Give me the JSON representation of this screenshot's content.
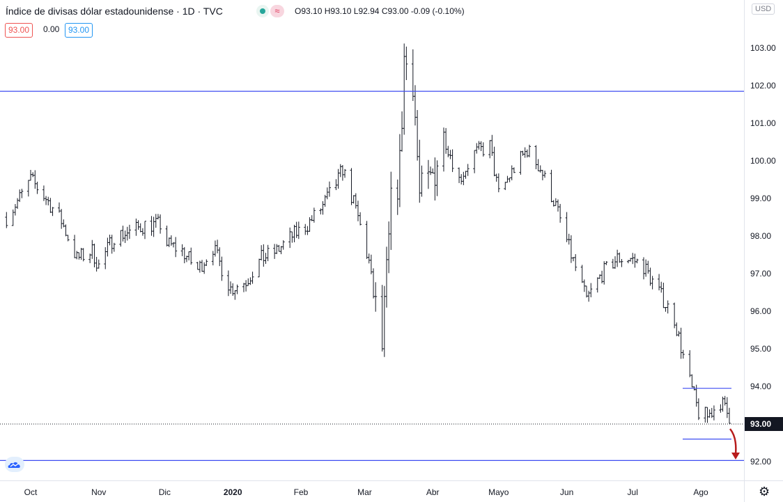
{
  "legend": {
    "title": "Índice de divisas dólar estadounidense · 1D · TVC",
    "open_label": "O",
    "open": "93.10",
    "high_label": "H",
    "high": "93.10",
    "low_label": "L",
    "low": "92.94",
    "close_label": "C",
    "close": "93.00",
    "change": "-0.09 (-0.10%)",
    "box_last": "93.00",
    "box_zero": "0.00",
    "box_blue": "93.00",
    "status_icon": "dot-icon",
    "wave_icon": "≈"
  },
  "price_axis": {
    "currency": "USD",
    "ticks": [
      "103.00",
      "102.00",
      "101.00",
      "100.00",
      "99.00",
      "98.00",
      "97.00",
      "96.00",
      "95.00",
      "94.00",
      "92.00"
    ],
    "last_price": "93.00"
  },
  "time_axis": {
    "labels": [
      "Oct",
      "Nov",
      "Dic",
      "2020",
      "Feb",
      "Mar",
      "Abr",
      "Mayo",
      "Jun",
      "Jul",
      "Ago"
    ]
  },
  "colors": {
    "bars": "#131722",
    "support_line": "#3d4cf2",
    "arrow": "#b71c1c",
    "last_label_bg": "#131722"
  },
  "chart_data": {
    "type": "ohlc",
    "title": "Índice de divisas dólar estadounidense",
    "interval": "1D",
    "source": "TVC",
    "currency": "USD",
    "ylim": [
      91.5,
      104.0
    ],
    "x_labels": [
      "Oct",
      "Nov",
      "Dic",
      "2020",
      "Feb",
      "Mar",
      "Abr",
      "Mayo",
      "Jun",
      "Jul",
      "Ago"
    ],
    "close_path": [
      [
        "2019-09-20",
        98.5
      ],
      [
        "2019-09-27",
        99.1
      ],
      [
        "2019-10-01",
        99.5
      ],
      [
        "2019-10-08",
        99.0
      ],
      [
        "2019-10-15",
        98.4
      ],
      [
        "2019-10-22",
        97.4
      ],
      [
        "2019-10-29",
        97.6
      ],
      [
        "2019-11-01",
        97.2
      ],
      [
        "2019-11-08",
        98.0
      ],
      [
        "2019-11-15",
        98.1
      ],
      [
        "2019-11-22",
        98.3
      ],
      [
        "2019-11-29",
        98.3
      ],
      [
        "2019-12-02",
        97.8
      ],
      [
        "2019-12-09",
        97.6
      ],
      [
        "2019-12-16",
        97.1
      ],
      [
        "2019-12-23",
        97.7
      ],
      [
        "2019-12-31",
        96.6
      ],
      [
        "2020-01-07",
        96.8
      ],
      [
        "2020-01-14",
        97.4
      ],
      [
        "2020-01-21",
        97.6
      ],
      [
        "2020-01-28",
        98.0
      ],
      [
        "2020-02-04",
        98.3
      ],
      [
        "2020-02-11",
        98.8
      ],
      [
        "2020-02-18",
        99.5
      ],
      [
        "2020-02-20",
        99.8
      ],
      [
        "2020-02-27",
        98.5
      ],
      [
        "2020-03-03",
        97.3
      ],
      [
        "2020-03-06",
        96.0
      ],
      [
        "2020-03-09",
        95.0
      ],
      [
        "2020-03-13",
        98.7
      ],
      [
        "2020-03-17",
        99.8
      ],
      [
        "2020-03-19",
        102.7
      ],
      [
        "2020-03-23",
        102.3
      ],
      [
        "2020-03-26",
        99.0
      ],
      [
        "2020-03-31",
        99.4
      ],
      [
        "2020-04-06",
        100.7
      ],
      [
        "2020-04-13",
        99.5
      ],
      [
        "2020-04-20",
        100.2
      ],
      [
        "2020-04-27",
        100.4
      ],
      [
        "2020-05-01",
        99.1
      ],
      [
        "2020-05-08",
        99.8
      ],
      [
        "2020-05-14",
        100.3
      ],
      [
        "2020-05-20",
        99.8
      ],
      [
        "2020-05-27",
        98.8
      ],
      [
        "2020-06-03",
        97.5
      ],
      [
        "2020-06-10",
        96.3
      ],
      [
        "2020-06-17",
        97.0
      ],
      [
        "2020-06-24",
        97.4
      ],
      [
        "2020-06-30",
        97.4
      ],
      [
        "2020-07-06",
        97.2
      ],
      [
        "2020-07-13",
        96.5
      ],
      [
        "2020-07-20",
        95.8
      ],
      [
        "2020-07-24",
        94.8
      ],
      [
        "2020-07-28",
        93.9
      ],
      [
        "2020-07-31",
        93.3
      ],
      [
        "2020-08-04",
        93.2
      ],
      [
        "2020-08-10",
        93.6
      ],
      [
        "2020-08-14",
        93.2
      ],
      [
        "2020-08-17",
        93.0
      ]
    ],
    "horizontal_lines": [
      101.85,
      92.03
    ],
    "range_box": {
      "upper": 93.95,
      "lower": 92.6
    },
    "last_price": 93.0
  }
}
